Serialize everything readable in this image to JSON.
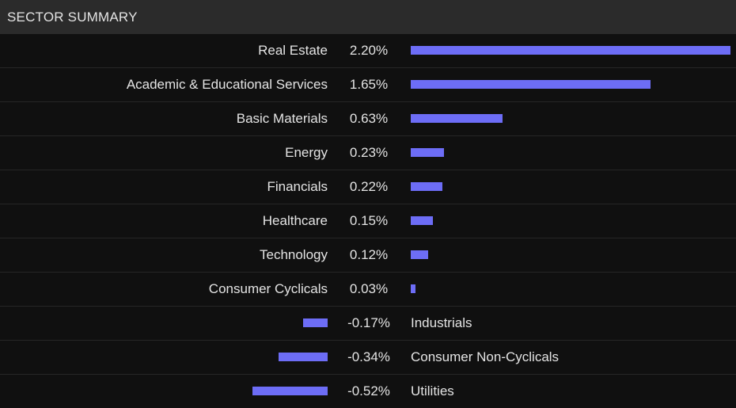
{
  "header": {
    "title": "SECTOR SUMMARY"
  },
  "colors": {
    "bar": "#6d6df6",
    "background": "#101010",
    "header_bg": "#2b2b2b",
    "text": "#e4e4e4"
  },
  "chart_data": {
    "type": "bar",
    "orientation": "horizontal-diverging",
    "title": "SECTOR SUMMARY",
    "categories": [
      "Real Estate",
      "Academic & Educational Services",
      "Basic Materials",
      "Energy",
      "Financials",
      "Healthcare",
      "Technology",
      "Consumer Cyclicals",
      "Industrials",
      "Consumer Non-Cyclicals",
      "Utilities"
    ],
    "values": [
      2.2,
      1.65,
      0.63,
      0.23,
      0.22,
      0.15,
      0.12,
      0.03,
      -0.17,
      -0.34,
      -0.52
    ],
    "value_labels": [
      "2.20%",
      "1.65%",
      "0.63%",
      "0.23%",
      "0.22%",
      "0.15%",
      "0.12%",
      "0.03%",
      "-0.17%",
      "-0.34%",
      "-0.52%"
    ],
    "unit": "%",
    "grid": false,
    "legend": "none"
  }
}
